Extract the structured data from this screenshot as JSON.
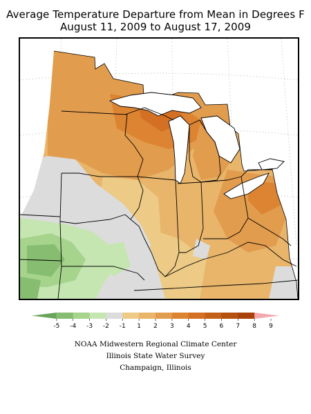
{
  "title": {
    "line1": "Average Temperature Departure from Mean in Degrees F",
    "line2": "August 11, 2009 to August 17, 2009"
  },
  "legend": {
    "bins": [
      {
        "color": "#6aa35a"
      },
      {
        "color": "#86bd70"
      },
      {
        "color": "#a6d48d"
      },
      {
        "color": "#c5e6b1"
      },
      {
        "color": "#dcdcdc"
      },
      {
        "color": "#edca85"
      },
      {
        "color": "#e8b56a"
      },
      {
        "color": "#e29c4e"
      },
      {
        "color": "#dc8431"
      },
      {
        "color": "#d37024"
      },
      {
        "color": "#c45f19"
      },
      {
        "color": "#b55011"
      },
      {
        "color": "#a8420a"
      },
      {
        "color": "#f3a8ae"
      }
    ],
    "tick_labels": [
      "-5",
      "-4",
      "-3",
      "-2",
      "-1",
      "1",
      "2",
      "3",
      "4",
      "5",
      "6",
      "7",
      "8",
      "9"
    ]
  },
  "credits": {
    "line1": "NOAA Midwestern Regional Climate Center",
    "line2": "Illinois State Water Survey",
    "line3": "Champaign, Illinois"
  }
}
